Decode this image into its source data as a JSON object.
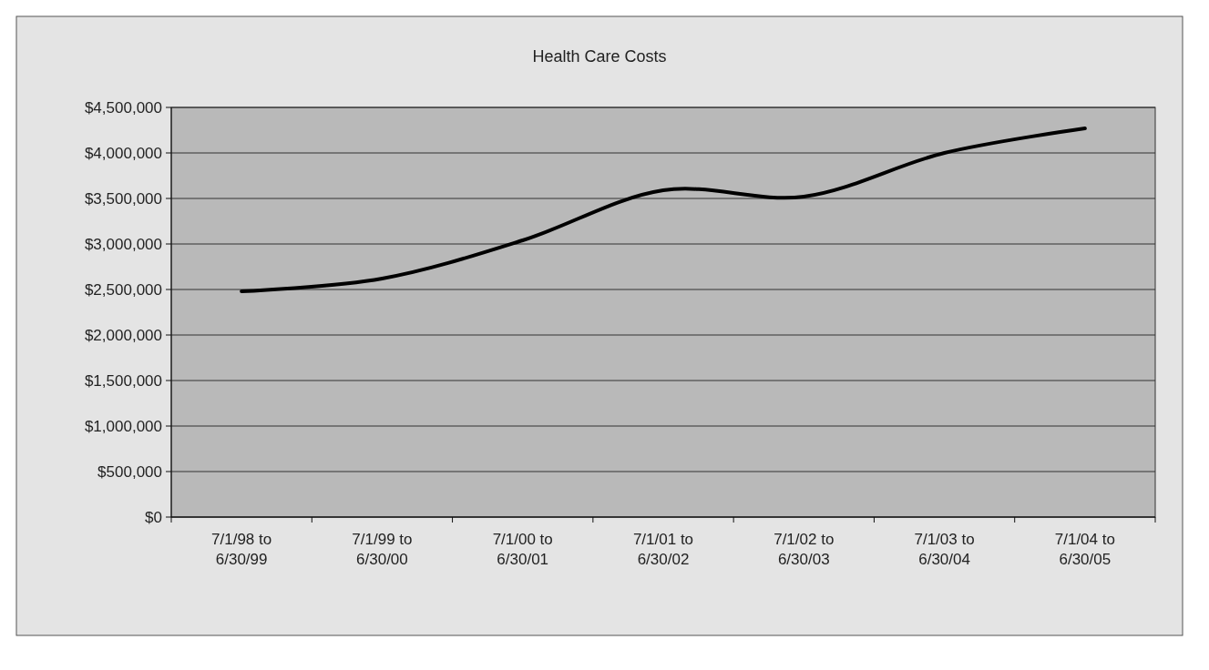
{
  "chart_data": {
    "type": "line",
    "title": "Health Care Costs",
    "categories": [
      "7/1/98 to\n6/30/99",
      "7/1/99 to\n6/30/00",
      "7/1/00 to\n6/30/01",
      "7/1/01 to\n6/30/02",
      "7/1/02 to\n6/30/03",
      "7/1/03 to\n6/30/04",
      "7/1/04 to\n6/30/05"
    ],
    "series": [
      {
        "color": "#000000",
        "values": [
          2480000,
          2620000,
          3040000,
          3590000,
          3520000,
          4000000,
          4270000
        ]
      }
    ],
    "ylim": [
      0,
      4500000
    ],
    "yticks": [
      {
        "value": 0,
        "label": "$0"
      },
      {
        "value": 500000,
        "label": "$500,000"
      },
      {
        "value": 1000000,
        "label": "$1,000,000"
      },
      {
        "value": 1500000,
        "label": "$1,500,000"
      },
      {
        "value": 2000000,
        "label": "$2,000,000"
      },
      {
        "value": 2500000,
        "label": "$2,500,000"
      },
      {
        "value": 3000000,
        "label": "$3,000,000"
      },
      {
        "value": 3500000,
        "label": "$3,500,000"
      },
      {
        "value": 4000000,
        "label": "$4,000,000"
      },
      {
        "value": 4500000,
        "label": "$4,500,000"
      }
    ],
    "grid": "y",
    "marker": "none",
    "line_style": "solid"
  }
}
